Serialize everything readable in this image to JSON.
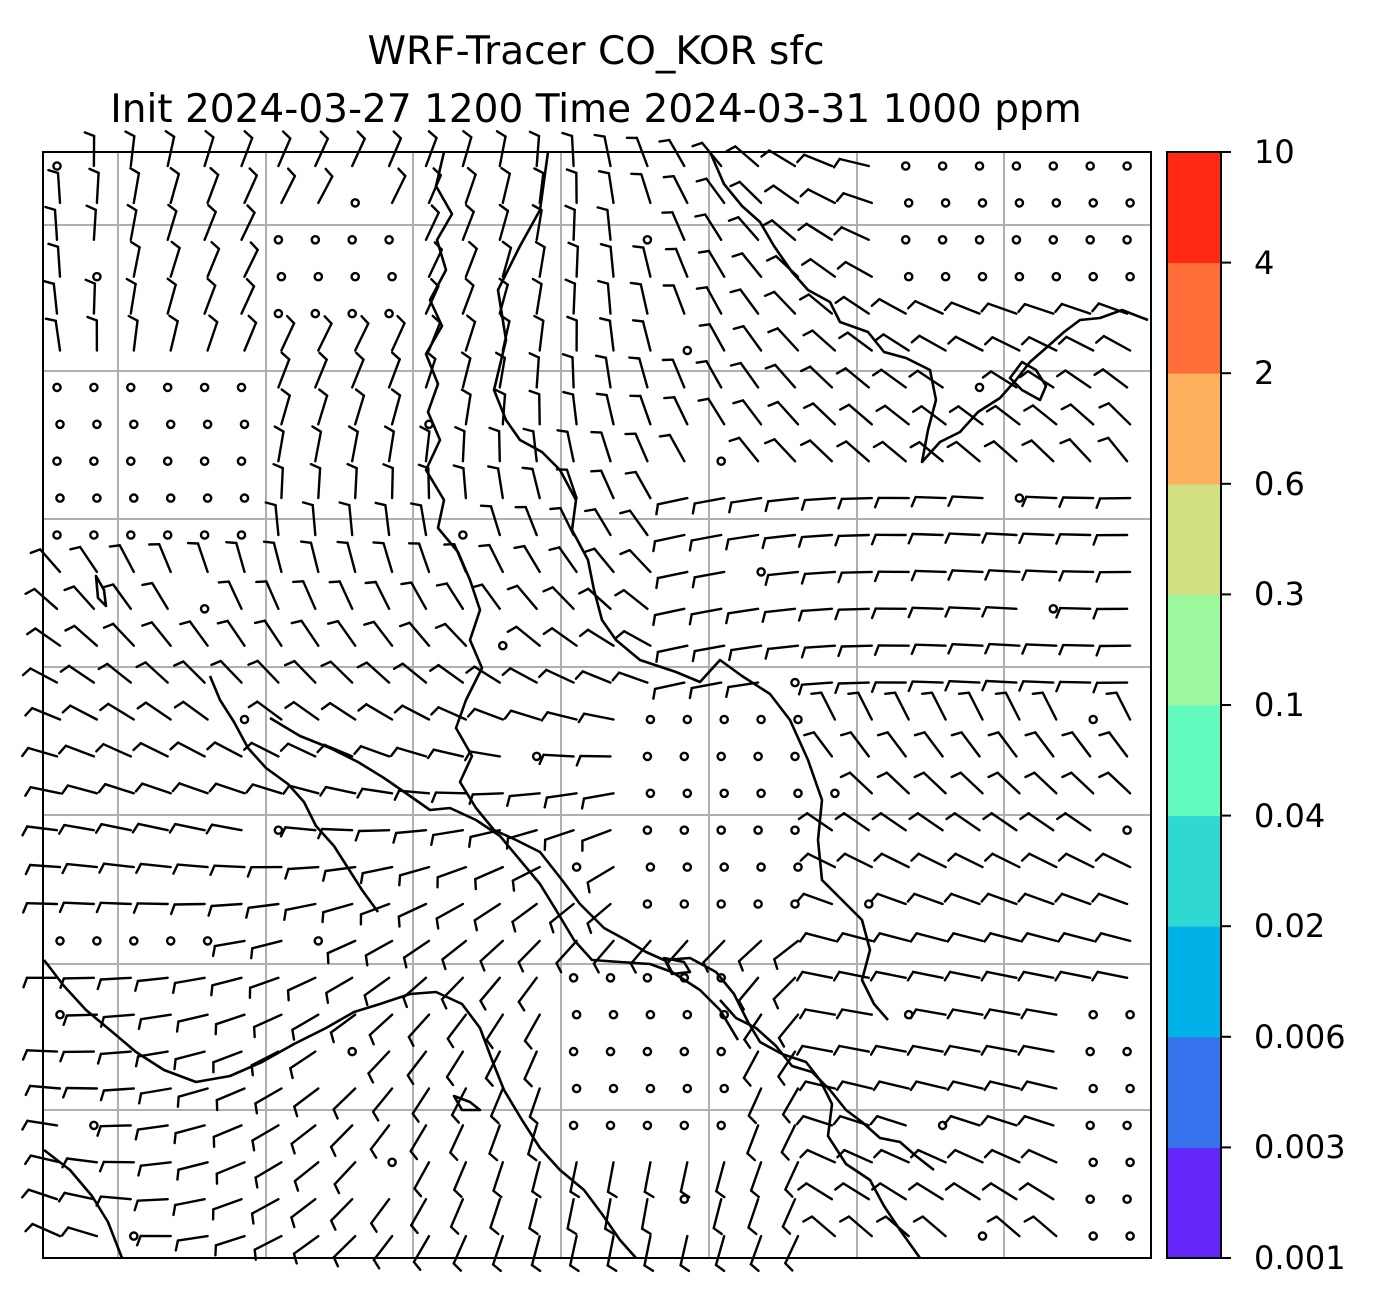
{
  "title": {
    "line1": "WRF-Tracer CO_KOR sfc",
    "line2": "Init 2024-03-27 1200 Time 2024-03-31 1000 ppm"
  },
  "colorbar": {
    "levels": [
      "0.001",
      "0.003",
      "0.006",
      "0.02",
      "0.04",
      "0.1",
      "0.3",
      "0.6",
      "2",
      "4",
      "10"
    ],
    "colors": [
      "#6429fa",
      "#3574ec",
      "#00b2e8",
      "#2fd8d1",
      "#63fabd",
      "#9bf89c",
      "#d2e082",
      "#fdb05e",
      "#ff6d38",
      "#ff2914"
    ]
  },
  "map": {
    "frame_color": "#000000",
    "gridline_color": "#b0b0b0",
    "coastline_color": "#000000",
    "barb_color": "#000000",
    "field": "wind barbs (surface)"
  }
}
